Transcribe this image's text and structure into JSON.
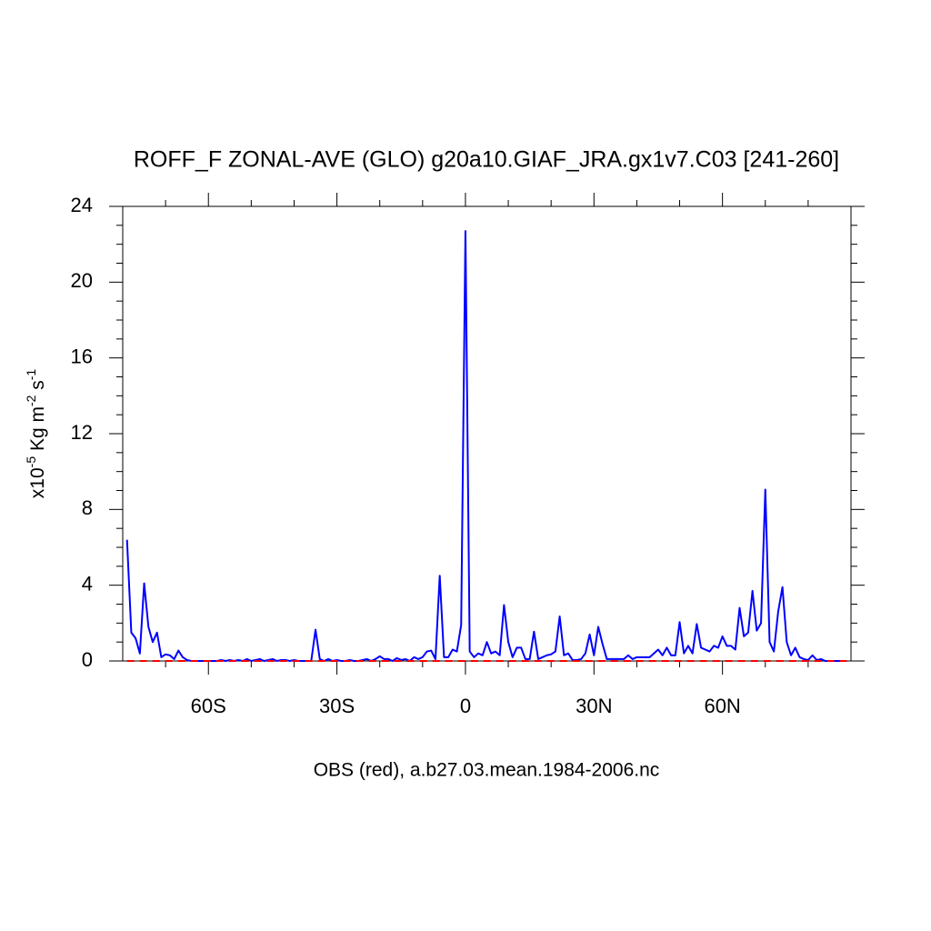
{
  "chart_data": {
    "type": "line",
    "title": "ROFF_F ZONAL-AVE (GLO) g20a10.GIAF_JRA.gx1v7.C03 [241-260]",
    "xlabel": "OBS (red), a.b27.03.mean.1984-2006.nc",
    "ylabel": [
      "x10",
      "-5",
      " Kg m",
      "-2",
      " s",
      "-1"
    ],
    "xlim": [
      -80,
      90
    ],
    "ylim": [
      0,
      24
    ],
    "xticks": [
      {
        "value": -60,
        "label": "60S"
      },
      {
        "value": -30,
        "label": "30S"
      },
      0,
      {
        "value": 30,
        "label": "30N"
      },
      {
        "value": 60,
        "label": "60N"
      }
    ],
    "yticks": [
      0,
      4,
      8,
      12,
      16,
      20,
      24
    ],
    "xminorticks": [
      -70,
      -50,
      -40,
      -20,
      -10,
      10,
      20,
      40,
      50,
      70,
      80
    ],
    "yminorticks": [
      1,
      2,
      3,
      5,
      6,
      7,
      9,
      10,
      11,
      13,
      14,
      15,
      17,
      18,
      19,
      21,
      22,
      23
    ],
    "grid": false,
    "x": [
      -79,
      -78,
      -77,
      -76,
      -75,
      -74,
      -73,
      -72,
      -71,
      -70,
      -69,
      -68,
      -67,
      -66,
      -65,
      -64,
      -63,
      -62,
      -61,
      -60,
      -59,
      -58,
      -57,
      -56,
      -55,
      -54,
      -53,
      -52,
      -51,
      -50,
      -49,
      -48,
      -47,
      -46,
      -45,
      -44,
      -43,
      -42,
      -41,
      -40,
      -39,
      -38,
      -37,
      -36,
      -35,
      -34,
      -33,
      -32,
      -31,
      -30,
      -29,
      -28,
      -27,
      -26,
      -25,
      -24,
      -23,
      -22,
      -21,
      -20,
      -19,
      -18,
      -17,
      -16,
      -15,
      -14,
      -13,
      -12,
      -11,
      -10,
      -9,
      -8,
      -7,
      -6,
      -5,
      -4,
      -3,
      -2,
      -1,
      0,
      1,
      2,
      3,
      4,
      5,
      6,
      7,
      8,
      9,
      10,
      11,
      12,
      13,
      14,
      15,
      16,
      17,
      18,
      19,
      20,
      21,
      22,
      23,
      24,
      25,
      26,
      27,
      28,
      29,
      30,
      31,
      32,
      33,
      34,
      35,
      36,
      37,
      38,
      39,
      40,
      41,
      42,
      43,
      44,
      45,
      46,
      47,
      48,
      49,
      50,
      51,
      52,
      53,
      54,
      55,
      56,
      57,
      58,
      59,
      60,
      61,
      62,
      63,
      64,
      65,
      66,
      67,
      68,
      69,
      70,
      71,
      72,
      73,
      74,
      75,
      76,
      77,
      78,
      79,
      80,
      81,
      82,
      83,
      84,
      85,
      86,
      87,
      88,
      89
    ],
    "series": [
      {
        "color": "#0000ff",
        "dashed": false,
        "values": [
          6.4,
          1.5,
          1.2,
          0.4,
          4.1,
          1.8,
          1.0,
          1.5,
          0.2,
          0.35,
          0.3,
          0.1,
          0.55,
          0.2,
          0.05,
          0,
          0,
          0,
          0,
          0,
          0,
          0,
          0.05,
          0,
          0.05,
          0,
          0.05,
          0,
          0.1,
          0,
          0.05,
          0.1,
          0,
          0.05,
          0.1,
          0,
          0.05,
          0.05,
          0,
          0.05,
          0,
          0,
          0,
          0,
          1.65,
          0.1,
          0,
          0.1,
          0,
          0.05,
          0,
          0,
          0.05,
          0,
          0,
          0.05,
          0.1,
          0,
          0.1,
          0.25,
          0.1,
          0.1,
          0,
          0.15,
          0.05,
          0.1,
          0,
          0.2,
          0.1,
          0.2,
          0.5,
          0.55,
          0.1,
          4.5,
          0.2,
          0.2,
          0.6,
          0.5,
          1.9,
          22.7,
          0.5,
          0.2,
          0.4,
          0.3,
          1.0,
          0.4,
          0.5,
          0.3,
          2.95,
          1.0,
          0.2,
          0.7,
          0.7,
          0.1,
          0.1,
          1.55,
          0.1,
          0.2,
          0.3,
          0.35,
          0.5,
          2.35,
          0.3,
          0.4,
          0.05,
          0.05,
          0.1,
          0.4,
          1.4,
          0.3,
          1.8,
          0.9,
          0.1,
          0.1,
          0.1,
          0.1,
          0.1,
          0.3,
          0.1,
          0.2,
          0.2,
          0.2,
          0.2,
          0.4,
          0.6,
          0.3,
          0.7,
          0.3,
          0.3,
          2.05,
          0.4,
          0.8,
          0.4,
          1.95,
          0.7,
          0.6,
          0.5,
          0.8,
          0.7,
          1.3,
          0.8,
          0.8,
          0.6,
          2.8,
          1.3,
          1.5,
          3.7,
          1.6,
          2.0,
          9.05,
          1.0,
          0.5,
          2.6,
          3.9,
          1.0,
          0.3,
          0.7,
          0.2,
          0.1,
          0.05,
          0.3,
          0.05,
          0.1,
          0,
          0,
          0,
          0,
          0,
          0
        ]
      },
      {
        "color": "#ff0000",
        "dashed": true,
        "x": [
          -79,
          89
        ],
        "values": [
          0,
          0
        ]
      }
    ]
  }
}
